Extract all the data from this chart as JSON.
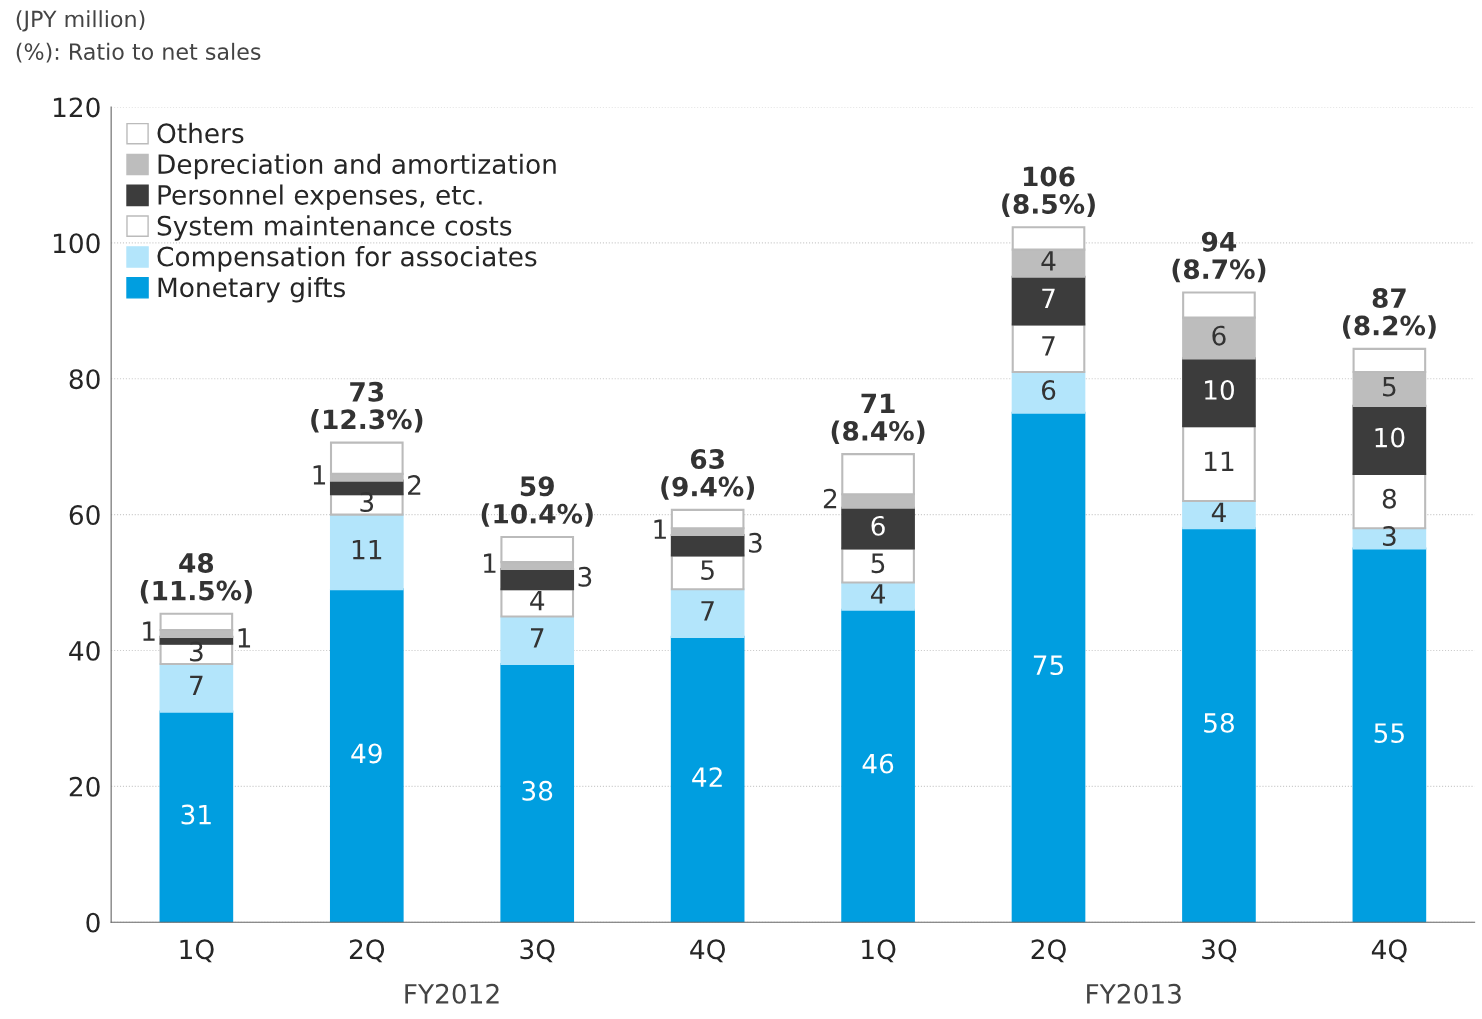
{
  "chart_data": {
    "type": "bar",
    "stacked": true,
    "title": "(JPY million)",
    "subtitle": "(%): Ratio to net sales",
    "categories": [
      "1Q",
      "2Q",
      "3Q",
      "4Q",
      "1Q",
      "2Q",
      "3Q",
      "4Q"
    ],
    "annotations": [
      "FY2012",
      "FY2013"
    ],
    "series": [
      {
        "name": "Monetary gifts",
        "color": "#009ee0",
        "values": [
          31,
          49,
          38,
          42,
          46,
          75,
          58,
          55
        ],
        "value_labels": [
          "31",
          "49",
          "38",
          "42",
          "46",
          "75",
          "58",
          "55"
        ]
      },
      {
        "name": "Compensation for associates",
        "color": "#b3e5fb",
        "values": [
          7,
          11,
          7,
          7,
          4,
          6,
          4,
          3
        ],
        "value_labels": [
          "7",
          "11",
          "7",
          "7",
          "4",
          "6",
          "4",
          "3"
        ]
      },
      {
        "name": "System maintenance costs",
        "color": "#ffffff",
        "values": [
          3,
          3,
          4,
          5,
          5,
          7,
          11,
          8
        ],
        "value_labels": [
          "3",
          "3",
          "4",
          "5",
          "5",
          "7",
          "11",
          "8"
        ]
      },
      {
        "name": "Personnel expenses, etc.",
        "color": "#3c3c3c",
        "values": [
          1,
          2,
          3,
          3,
          6,
          7,
          10,
          10
        ],
        "value_labels": [
          "1",
          "2",
          "3",
          "3",
          "6",
          "7",
          "10",
          "10"
        ]
      },
      {
        "name": "Depreciation and amortization",
        "color": "#bdbdbd",
        "values": [
          1,
          1,
          1,
          1,
          2,
          4,
          6,
          5
        ],
        "value_labels": [
          "1",
          "1",
          "1",
          "1",
          "2",
          "4",
          "6",
          "5"
        ]
      },
      {
        "name": "Others",
        "color": "#ffffff",
        "values": [
          2.4,
          4.6,
          3.7,
          2.7,
          5.9,
          3.3,
          3.7,
          3.4
        ]
      }
    ],
    "totals": [
      "48\n(11.5%)",
      "73\n(12.3%)",
      "59\n(10.4%)",
      "63\n(9.4%)",
      "71\n(8.4%)",
      "106\n(8.5%)",
      "94\n(8.7%)",
      "87\n(8.2%)"
    ],
    "ylim": [
      0,
      120
    ],
    "yticks": [
      0,
      20,
      40,
      60,
      80,
      100,
      120
    ],
    "grid": "y",
    "legend": "top left"
  }
}
